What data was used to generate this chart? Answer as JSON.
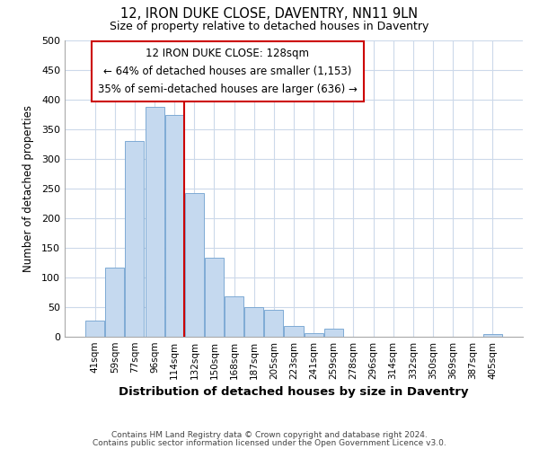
{
  "title": "12, IRON DUKE CLOSE, DAVENTRY, NN11 9LN",
  "subtitle": "Size of property relative to detached houses in Daventry",
  "xlabel": "Distribution of detached houses by size in Daventry",
  "ylabel": "Number of detached properties",
  "bar_color": "#c5d9ef",
  "bar_edge_color": "#7eaad4",
  "background_color": "#ffffff",
  "grid_color": "#ccd9ea",
  "categories": [
    "41sqm",
    "59sqm",
    "77sqm",
    "96sqm",
    "114sqm",
    "132sqm",
    "150sqm",
    "168sqm",
    "187sqm",
    "205sqm",
    "223sqm",
    "241sqm",
    "259sqm",
    "278sqm",
    "296sqm",
    "314sqm",
    "332sqm",
    "350sqm",
    "369sqm",
    "387sqm",
    "405sqm"
  ],
  "values": [
    27,
    117,
    330,
    388,
    375,
    242,
    133,
    68,
    50,
    46,
    18,
    6,
    13,
    0,
    0,
    0,
    0,
    0,
    0,
    0,
    5
  ],
  "property_line_color": "#cc0000",
  "annotation_title": "12 IRON DUKE CLOSE: 128sqm",
  "annotation_line1": "← 64% of detached houses are smaller (1,153)",
  "annotation_line2": "35% of semi-detached houses are larger (636) →",
  "annotation_box_color": "#ffffff",
  "annotation_box_edge": "#cc0000",
  "ylim": [
    0,
    500
  ],
  "yticks": [
    0,
    50,
    100,
    150,
    200,
    250,
    300,
    350,
    400,
    450,
    500
  ],
  "footer1": "Contains HM Land Registry data © Crown copyright and database right 2024.",
  "footer2": "Contains public sector information licensed under the Open Government Licence v3.0."
}
